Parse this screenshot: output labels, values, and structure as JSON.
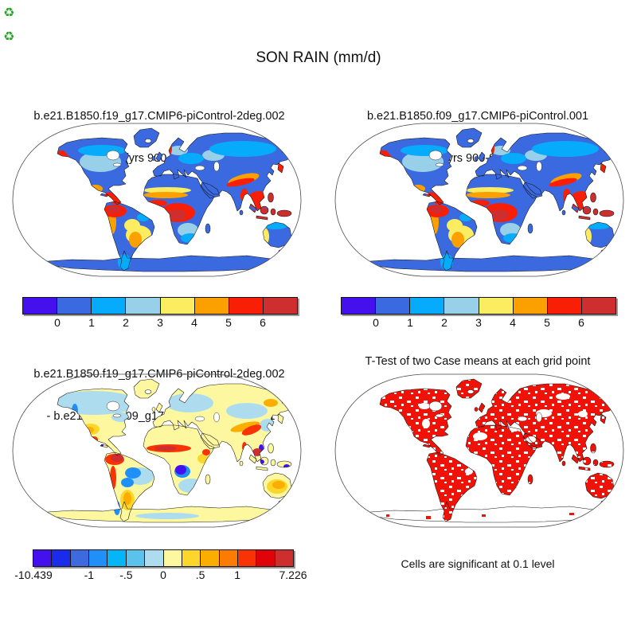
{
  "corner_markers": {
    "glyph": "♻",
    "color": "#2fa32f"
  },
  "main_title": "SON RAIN (mm/d)",
  "panels": [
    {
      "title_line1": "b.e21.B1850.f19_g17.CMIP6-piControl-2deg.002",
      "title_line2": "(yrs 900-999)",
      "colorbar": {
        "colors": [
          "#4411ee",
          "#3b6ae0",
          "#07abfb",
          "#98cfe9",
          "#fcec60",
          "#fca000",
          "#f91f06",
          "#ce2e2e"
        ],
        "ticks": [
          "0",
          "1",
          "2",
          "3",
          "4",
          "5",
          "6"
        ],
        "tick_positions": [
          1,
          2,
          3,
          4,
          5,
          6,
          7
        ]
      }
    },
    {
      "title_line1": "b.e21.B1850.f09_g17.CMIP6-piControl.001",
      "title_line2": "(yrs 900-999)",
      "colorbar": {
        "colors": [
          "#4411ee",
          "#3b6ae0",
          "#07abfb",
          "#98cfe9",
          "#fcec60",
          "#fca000",
          "#f91f06",
          "#ce2e2e"
        ],
        "ticks": [
          "0",
          "1",
          "2",
          "3",
          "4",
          "5",
          "6"
        ],
        "tick_positions": [
          1,
          2,
          3,
          4,
          5,
          6,
          7
        ]
      }
    },
    {
      "title_line1": "b.e21.B1850.f19_g17.CMIP6-piControl-2deg.002",
      "title_line2": " - b.e21.B1850.f09_g17.CMIP6-piControl.001",
      "colorbar": {
        "colors": [
          "#4411ee",
          "#1b2beb",
          "#3e6ae0",
          "#2090f8",
          "#04b5f8",
          "#5bc2ec",
          "#aedcef",
          "#fdf8a0",
          "#fdd62b",
          "#fcae00",
          "#fb7c00",
          "#f93306",
          "#e00309",
          "#ce2e2e"
        ],
        "ticks": [
          "-10.439",
          "-1",
          "-.5",
          "0",
          ".5",
          "1",
          "7.226"
        ],
        "tick_positions": [
          0,
          3,
          5,
          7,
          9,
          11,
          14
        ]
      }
    },
    {
      "title_line1": "T-Test of two Case means at each grid point",
      "caption": "Cells are significant at 0.1 level"
    }
  ],
  "palettes": {
    "precip": [
      "#4411ee",
      "#3b6ae0",
      "#07abfb",
      "#98cfe9",
      "#fcec60",
      "#fca000",
      "#f91f06",
      "#ce2e2e"
    ],
    "diff": [
      "#4411ee",
      "#1b2beb",
      "#3e6ae0",
      "#2090f8",
      "#04b5f8",
      "#5bc2ec",
      "#aedcef",
      "#fdf8a0",
      "#fdd62b",
      "#fcae00",
      "#fb7c00",
      "#f93306",
      "#e00309",
      "#ce2e2e"
    ],
    "ttest_significant": "#f01206"
  },
  "chart_data": {
    "type": "heatmap",
    "figure": "Four-panel global land-only map comparison on Robinson projection, white ocean",
    "variable": "SON RAIN (mm/d)",
    "panels": [
      {
        "name": "case-1-map",
        "title": "b.e21.B1850.f19_g17.CMIP6-piControl-2deg.002 (yrs 900-999)",
        "colorbar_tick_labels": [
          0,
          1,
          2,
          3,
          4,
          5,
          6
        ],
        "colorbar_colors": [
          "#4411ee",
          "#3b6ae0",
          "#07abfb",
          "#98cfe9",
          "#fcec60",
          "#fca000",
          "#f91f06",
          "#ce2e2e"
        ],
        "pattern": "land mostly blue (0-1 mm/d); light blue central N America and S Africa; red/orange along NA west coast, Central America, NW South America, central Africa, Himalaya arc, SE Asia and Indonesia; Antarctica blue"
      },
      {
        "name": "case-2-map",
        "title": "b.e21.B1850.f09_g17.CMIP6-piControl.001 (yrs 900-999)",
        "colorbar_tick_labels": [
          0,
          1,
          2,
          3,
          4,
          5,
          6
        ],
        "colorbar_colors": [
          "#4411ee",
          "#3b6ae0",
          "#07abfb",
          "#98cfe9",
          "#fcec60",
          "#fca000",
          "#f91f06",
          "#ce2e2e"
        ],
        "pattern": "very similar to case 1: blue land, red tropics (Congo, NW Amazon, SE Asia, Indonesia), red west coasts, yellow central South America"
      },
      {
        "name": "difference-map",
        "title": "b.e21.B1850.f19_g17.CMIP6-piControl-2deg.002 - b.e21.B1850.f09_g17.CMIP6-piControl.001",
        "colorbar_tick_labels": [
          -10.439,
          -1,
          -0.5,
          0,
          0.5,
          1,
          7.226
        ],
        "min": -10.439,
        "max": 7.226,
        "colorbar_colors": [
          "#4411ee",
          "#1b2beb",
          "#3e6ae0",
          "#2090f8",
          "#04b5f8",
          "#5bc2ec",
          "#aedcef",
          "#fdf8a0",
          "#fdd62b",
          "#fcae00",
          "#fb7c00",
          "#f93306",
          "#e00309",
          "#ce2e2e"
        ],
        "pattern": "pale yellow/pale blue background; red Sahel band and Andes/NW South America; blue-violet blobs central Africa, Amazon, Indonesia; orange SW US, Argentina, Australia, Tibet arc"
      },
      {
        "name": "t-test-map",
        "title": "T-Test of two Case means at each grid point",
        "note": "Cells are significant at 0.1 level",
        "significant_color": "#f01206",
        "pattern": "most land cells filled red (significant) with scattered white gaps; Antarctica mostly white outline"
      }
    ]
  }
}
